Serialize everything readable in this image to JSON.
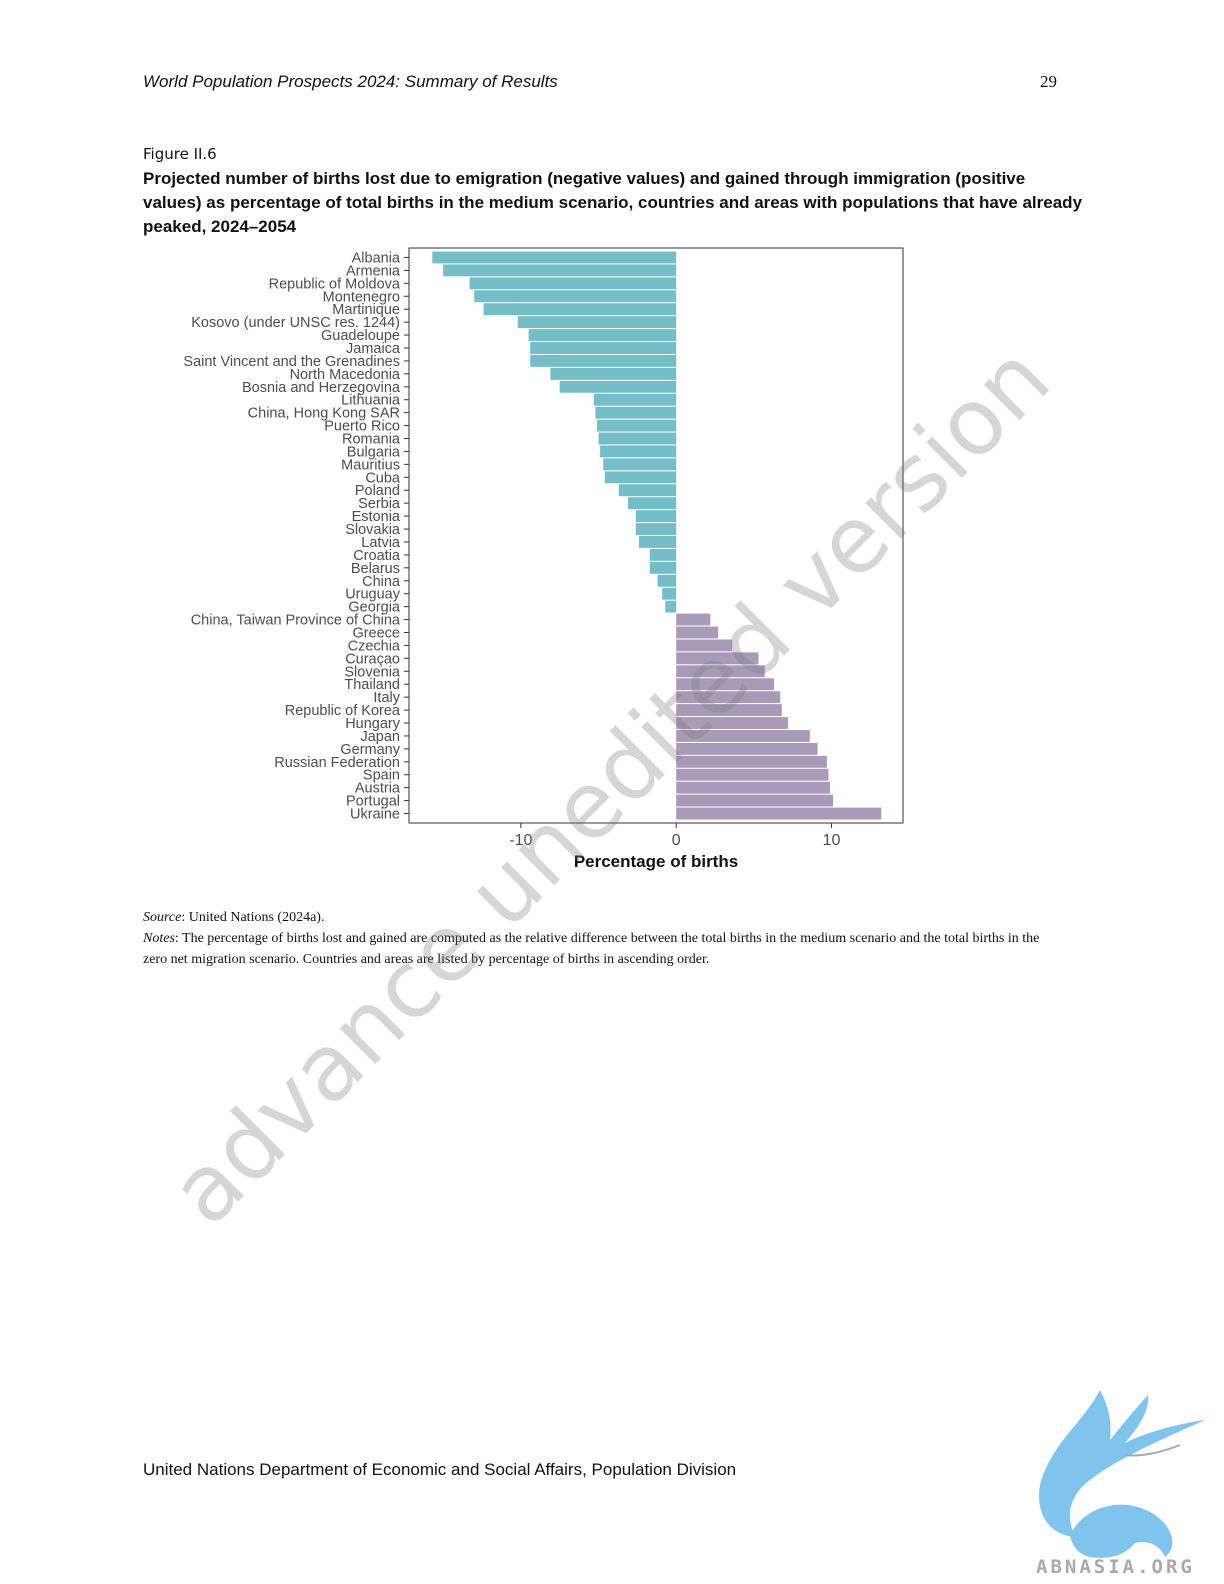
{
  "header": {
    "running_title": "World Population Prospects 2024: Summary of Results",
    "page_number": "29"
  },
  "figure": {
    "label": "Figure II.6",
    "title": "Projected number of births lost due to emigration (negative values) and gained through immigration (positive values) as percentage of total births in the medium scenario, countries and areas with populations that have already peaked, 2024–2054"
  },
  "chart_data": {
    "type": "bar",
    "orientation": "horizontal",
    "xlabel": "Percentage of births",
    "ylabel": "",
    "xlim": [
      -17.2,
      14.6
    ],
    "xticks": [
      -10,
      0,
      10
    ],
    "xtick_labels": [
      "-10",
      "0",
      "10"
    ],
    "grid": false,
    "colors": {
      "negative": "#74bec7",
      "positive": "#a89bb8"
    },
    "categories": [
      "Albania",
      "Armenia",
      "Republic of Moldova",
      "Montenegro",
      "Martinique",
      "Kosovo (under UNSC res. 1244)",
      "Guadeloupe",
      "Jamaica",
      "Saint Vincent and the Grenadines",
      "North Macedonia",
      "Bosnia and Herzegovina",
      "Lithuania",
      "China, Hong Kong SAR",
      "Puerto Rico",
      "Romania",
      "Bulgaria",
      "Mauritius",
      "Cuba",
      "Poland",
      "Serbia",
      "Estonia",
      "Slovakia",
      "Latvia",
      "Croatia",
      "Belarus",
      "China",
      "Uruguay",
      "Georgia",
      "China, Taiwan Province of China",
      "Greece",
      "Czechia",
      "Curaçao",
      "Slovenia",
      "Thailand",
      "Italy",
      "Republic of Korea",
      "Hungary",
      "Japan",
      "Germany",
      "Russian Federation",
      "Spain",
      "Austria",
      "Portugal",
      "Ukraine"
    ],
    "values": [
      -15.7,
      -15.0,
      -13.3,
      -13.0,
      -12.4,
      -10.2,
      -9.5,
      -9.4,
      -9.4,
      -8.1,
      -7.5,
      -5.3,
      -5.2,
      -5.1,
      -5.0,
      -4.9,
      -4.7,
      -4.6,
      -3.7,
      -3.1,
      -2.6,
      -2.6,
      -2.4,
      -1.7,
      -1.7,
      -1.2,
      -0.9,
      -0.7,
      2.2,
      2.7,
      3.6,
      5.3,
      5.7,
      6.3,
      6.7,
      6.8,
      7.2,
      8.6,
      9.1,
      9.7,
      9.8,
      9.9,
      10.1,
      13.2
    ]
  },
  "source": {
    "label": "Source",
    "text": ": United Nations (2024a)."
  },
  "notes": {
    "label": "Notes",
    "text": ": The percentage of births lost and gained are computed as the relative difference between the total births in the medium scenario and the total births in the zero net migration scenario. Countries and areas are listed by percentage of births in ascending order."
  },
  "footer": {
    "text": "United Nations Department of Economic and Social Affairs, Population Division"
  },
  "watermark": {
    "text": "advance unedited version"
  },
  "logo": {
    "text": "ABNASIA.ORG",
    "icon": "griffin-logo-icon",
    "color": "#7fc4ec"
  }
}
